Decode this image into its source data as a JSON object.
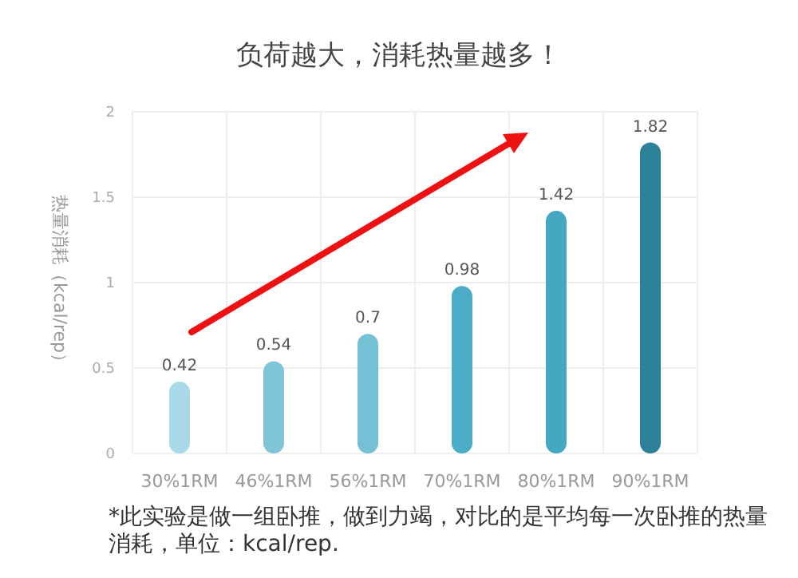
{
  "chart_data": {
    "type": "bar",
    "title": "负荷越大，消耗热量越多！",
    "ylabel": "热量消耗（kcal/rep）",
    "categories": [
      "30%1RM",
      "46%1RM",
      "56%1RM",
      "70%1RM",
      "80%1RM",
      "90%1RM"
    ],
    "values": [
      0.42,
      0.54,
      0.7,
      0.98,
      1.42,
      1.82
    ],
    "colors": [
      "#a9d9e8",
      "#7fc5d9",
      "#74c0d5",
      "#4aacc7",
      "#45a8c3",
      "#2d8199"
    ],
    "data_labels": true,
    "ylim": [
      0,
      2
    ],
    "yticks": [
      0,
      0.5,
      1,
      1.5,
      2
    ],
    "grid": true,
    "annotations": [
      "*此实验是做一组卧推，做到力竭，对比的是平均每一次卧推的热量消耗，单位：kcal/rep."
    ]
  }
}
